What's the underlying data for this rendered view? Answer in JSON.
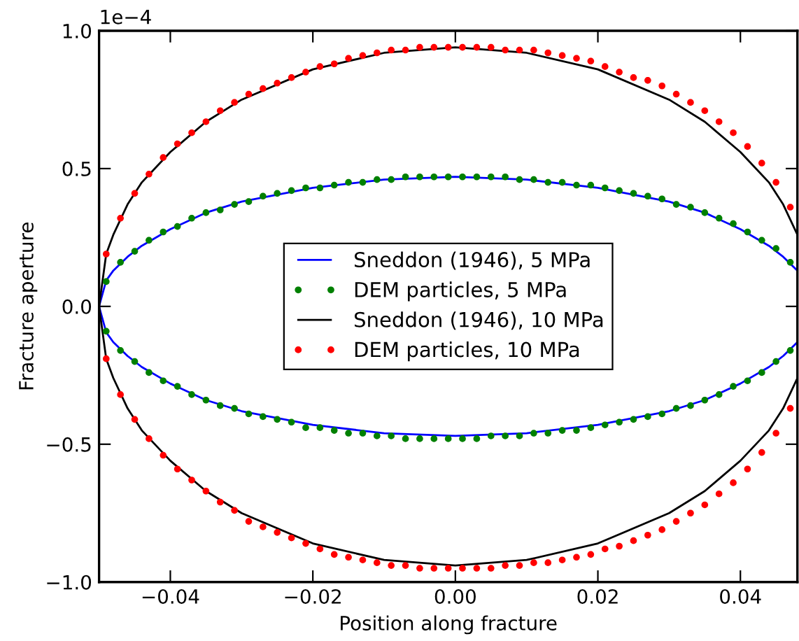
{
  "chart_data": {
    "type": "line",
    "xlabel": "Position along fracture",
    "ylabel": "Fracture aperture",
    "annotations": [
      "1e−4"
    ],
    "xlim": [
      -0.05,
      0.048
    ],
    "ylim": [
      -1.0,
      1.0
    ],
    "xticks": [
      {
        "value": -0.04,
        "label": "−0.04"
      },
      {
        "value": -0.02,
        "label": "−0.02"
      },
      {
        "value": 0,
        "label": "0.00"
      },
      {
        "value": 0.02,
        "label": "0.02"
      },
      {
        "value": 0.04,
        "label": "0.04"
      }
    ],
    "yticks": [
      {
        "value": -1.0,
        "label": "−1.0"
      },
      {
        "value": -0.5,
        "label": "−0.5"
      },
      {
        "value": 0,
        "label": "0.0"
      },
      {
        "value": 0.5,
        "label": "0.5"
      },
      {
        "value": 1.0,
        "label": "1.0"
      }
    ],
    "grid": false,
    "legend": "center",
    "series": [
      {
        "name": "Sneddon (1946), 5 MPa",
        "type": "line",
        "color": "#0000ff",
        "marker": "none",
        "line_style": "solid",
        "x": [
          -0.05,
          -0.049,
          -0.048,
          -0.046,
          -0.044,
          -0.04,
          -0.035,
          -0.03,
          -0.02,
          -0.01,
          0,
          0.01,
          0.02,
          0.03,
          0.035,
          0.04,
          0.044,
          0.046,
          0.048,
          null,
          -0.05,
          -0.049,
          -0.048,
          -0.046,
          -0.044,
          -0.04,
          -0.035,
          -0.03,
          -0.02,
          -0.01,
          0,
          0.01,
          0.02,
          0.03,
          0.035,
          0.04,
          0.044,
          0.046,
          0.048
        ],
        "values": [
          0,
          0.094,
          0.13,
          0.18,
          0.22,
          0.28,
          0.34,
          0.38,
          0.43,
          0.46,
          0.47,
          0.46,
          0.43,
          0.38,
          0.34,
          0.28,
          0.22,
          0.18,
          0.13,
          null,
          0,
          -0.094,
          -0.13,
          -0.18,
          -0.22,
          -0.28,
          -0.34,
          -0.38,
          -0.43,
          -0.46,
          -0.47,
          -0.46,
          -0.43,
          -0.38,
          -0.34,
          -0.28,
          -0.22,
          -0.18,
          -0.13
        ]
      },
      {
        "name": "DEM particles, 5 MPa",
        "type": "scatter",
        "color": "#008000",
        "marker": "circle",
        "x": [
          -0.049,
          -0.047,
          -0.045,
          -0.043,
          -0.041,
          -0.039,
          -0.037,
          -0.035,
          -0.033,
          -0.031,
          -0.029,
          -0.027,
          -0.025,
          -0.023,
          -0.021,
          -0.019,
          -0.017,
          -0.015,
          -0.013,
          -0.011,
          -0.009,
          -0.007,
          -0.005,
          -0.003,
          -0.001,
          0.001,
          0.003,
          0.005,
          0.007,
          0.009,
          0.011,
          0.013,
          0.015,
          0.017,
          0.019,
          0.021,
          0.023,
          0.025,
          0.027,
          0.029,
          0.031,
          0.033,
          0.035,
          0.037,
          0.039,
          0.041,
          0.043,
          0.045,
          0.047,
          -0.049,
          -0.047,
          -0.045,
          -0.043,
          -0.041,
          -0.039,
          -0.037,
          -0.035,
          -0.033,
          -0.031,
          -0.029,
          -0.027,
          -0.025,
          -0.023,
          -0.021,
          -0.019,
          -0.017,
          -0.015,
          -0.013,
          -0.011,
          -0.009,
          -0.007,
          -0.005,
          -0.003,
          -0.001,
          0.001,
          0.003,
          0.005,
          0.007,
          0.009,
          0.011,
          0.013,
          0.015,
          0.017,
          0.019,
          0.021,
          0.023,
          0.025,
          0.027,
          0.029,
          0.031,
          0.033,
          0.035,
          0.037,
          0.039,
          0.041,
          0.043,
          0.045,
          0.047
        ],
        "values": [
          0.09,
          0.16,
          0.2,
          0.24,
          0.27,
          0.29,
          0.32,
          0.34,
          0.35,
          0.37,
          0.38,
          0.4,
          0.41,
          0.42,
          0.43,
          0.43,
          0.44,
          0.45,
          0.45,
          0.46,
          0.46,
          0.47,
          0.47,
          0.47,
          0.47,
          0.47,
          0.47,
          0.47,
          0.47,
          0.46,
          0.46,
          0.45,
          0.45,
          0.44,
          0.44,
          0.43,
          0.42,
          0.41,
          0.4,
          0.39,
          0.37,
          0.36,
          0.34,
          0.32,
          0.3,
          0.27,
          0.24,
          0.21,
          0.16,
          -0.09,
          -0.16,
          -0.2,
          -0.24,
          -0.27,
          -0.29,
          -0.32,
          -0.34,
          -0.36,
          -0.37,
          -0.39,
          -0.4,
          -0.41,
          -0.42,
          -0.44,
          -0.44,
          -0.45,
          -0.46,
          -0.46,
          -0.47,
          -0.47,
          -0.48,
          -0.48,
          -0.48,
          -0.48,
          -0.48,
          -0.48,
          -0.47,
          -0.47,
          -0.47,
          -0.46,
          -0.46,
          -0.45,
          -0.45,
          -0.44,
          -0.43,
          -0.42,
          -0.41,
          -0.4,
          -0.39,
          -0.37,
          -0.36,
          -0.34,
          -0.32,
          -0.29,
          -0.27,
          -0.24,
          -0.2,
          -0.16
        ]
      },
      {
        "name": "Sneddon (1946), 10 MPa",
        "type": "line",
        "color": "#000000",
        "marker": "none",
        "line_style": "solid",
        "x": [
          -0.05,
          -0.049,
          -0.048,
          -0.046,
          -0.044,
          -0.04,
          -0.035,
          -0.03,
          -0.02,
          -0.01,
          0,
          0.01,
          0.02,
          0.03,
          0.035,
          0.04,
          0.044,
          0.046,
          0.048,
          null,
          -0.05,
          -0.049,
          -0.048,
          -0.046,
          -0.044,
          -0.04,
          -0.035,
          -0.03,
          -0.02,
          -0.01,
          0,
          0.01,
          0.02,
          0.03,
          0.035,
          0.04,
          0.044,
          0.046,
          0.048
        ],
        "values": [
          0,
          0.19,
          0.26,
          0.37,
          0.45,
          0.56,
          0.67,
          0.75,
          0.86,
          0.92,
          0.94,
          0.92,
          0.86,
          0.75,
          0.67,
          0.56,
          0.45,
          0.37,
          0.26,
          null,
          0,
          -0.19,
          -0.26,
          -0.37,
          -0.45,
          -0.56,
          -0.67,
          -0.75,
          -0.86,
          -0.92,
          -0.94,
          -0.92,
          -0.86,
          -0.75,
          -0.67,
          -0.56,
          -0.45,
          -0.37,
          -0.26
        ]
      },
      {
        "name": "DEM particles, 10 MPa",
        "type": "scatter",
        "color": "#ff0000",
        "marker": "circle",
        "x": [
          -0.049,
          -0.047,
          -0.045,
          -0.043,
          -0.041,
          -0.039,
          -0.037,
          -0.035,
          -0.033,
          -0.031,
          -0.029,
          -0.027,
          -0.025,
          -0.023,
          -0.021,
          -0.019,
          -0.017,
          -0.015,
          -0.013,
          -0.011,
          -0.009,
          -0.007,
          -0.005,
          -0.003,
          -0.001,
          0.001,
          0.003,
          0.005,
          0.007,
          0.009,
          0.011,
          0.013,
          0.015,
          0.017,
          0.019,
          0.021,
          0.023,
          0.025,
          0.027,
          0.029,
          0.031,
          0.033,
          0.035,
          0.037,
          0.039,
          0.041,
          0.043,
          0.045,
          0.047,
          -0.049,
          -0.047,
          -0.045,
          -0.043,
          -0.041,
          -0.039,
          -0.037,
          -0.035,
          -0.033,
          -0.031,
          -0.029,
          -0.027,
          -0.025,
          -0.023,
          -0.021,
          -0.019,
          -0.017,
          -0.015,
          -0.013,
          -0.011,
          -0.009,
          -0.007,
          -0.005,
          -0.003,
          -0.001,
          0.001,
          0.003,
          0.005,
          0.007,
          0.009,
          0.011,
          0.013,
          0.015,
          0.017,
          0.019,
          0.021,
          0.023,
          0.025,
          0.027,
          0.029,
          0.031,
          0.033,
          0.035,
          0.037,
          0.039,
          0.041,
          0.043,
          0.045,
          0.047
        ],
        "values": [
          0.19,
          0.32,
          0.41,
          0.48,
          0.54,
          0.59,
          0.63,
          0.67,
          0.71,
          0.74,
          0.77,
          0.79,
          0.81,
          0.83,
          0.85,
          0.87,
          0.88,
          0.9,
          0.91,
          0.92,
          0.93,
          0.93,
          0.94,
          0.94,
          0.94,
          0.94,
          0.94,
          0.94,
          0.93,
          0.93,
          0.93,
          0.92,
          0.91,
          0.9,
          0.89,
          0.87,
          0.85,
          0.83,
          0.82,
          0.8,
          0.77,
          0.74,
          0.71,
          0.67,
          0.63,
          0.58,
          0.52,
          0.45,
          0.36,
          -0.19,
          -0.32,
          -0.41,
          -0.48,
          -0.54,
          -0.59,
          -0.63,
          -0.67,
          -0.71,
          -0.74,
          -0.78,
          -0.8,
          -0.82,
          -0.84,
          -0.86,
          -0.88,
          -0.9,
          -0.91,
          -0.92,
          -0.93,
          -0.94,
          -0.94,
          -0.95,
          -0.95,
          -0.95,
          -0.95,
          -0.95,
          -0.95,
          -0.94,
          -0.94,
          -0.93,
          -0.93,
          -0.92,
          -0.91,
          -0.9,
          -0.88,
          -0.87,
          -0.85,
          -0.83,
          -0.81,
          -0.78,
          -0.75,
          -0.72,
          -0.68,
          -0.64,
          -0.59,
          -0.53,
          -0.46,
          -0.37
        ]
      }
    ]
  }
}
